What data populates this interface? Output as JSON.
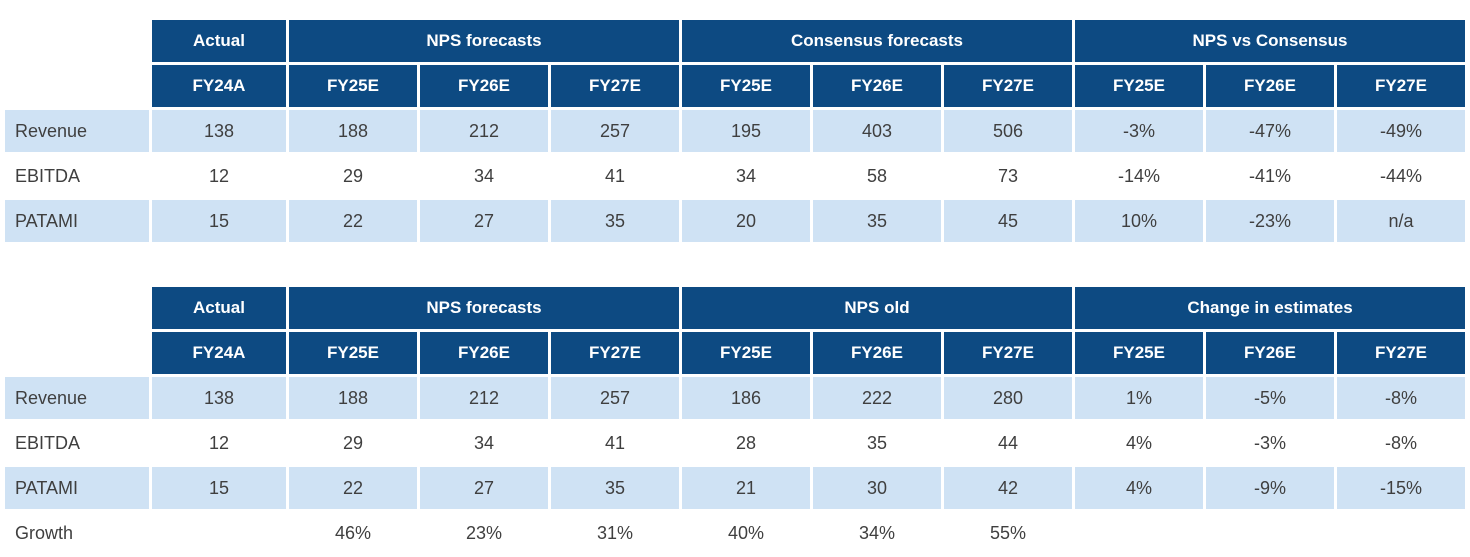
{
  "colors": {
    "header_bg": "#0d4a82",
    "header_text": "#ffffff",
    "row_shaded_bg": "#cfe2f4",
    "row_plain_bg": "#ffffff",
    "body_text": "#3f3f3f",
    "grid_gap": "#ffffff"
  },
  "chart_data": [
    {
      "type": "table",
      "groups": [
        {
          "label": "Actual",
          "span": 1
        },
        {
          "label": "NPS forecasts",
          "span": 3
        },
        {
          "label": "Consensus forecasts",
          "span": 3
        },
        {
          "label": "NPS vs Consensus",
          "span": 3
        }
      ],
      "col_headers": [
        "FY24A",
        "FY25E",
        "FY26E",
        "FY27E",
        "FY25E",
        "FY26E",
        "FY27E",
        "FY25E",
        "FY26E",
        "FY27E"
      ],
      "rows": [
        {
          "label": "Revenue",
          "shaded": true,
          "values": [
            "138",
            "188",
            "212",
            "257",
            "195",
            "403",
            "506",
            "-3%",
            "-47%",
            "-49%"
          ]
        },
        {
          "label": "EBITDA",
          "shaded": false,
          "values": [
            "12",
            "29",
            "34",
            "41",
            "34",
            "58",
            "73",
            "-14%",
            "-41%",
            "-44%"
          ]
        },
        {
          "label": "PATAMI",
          "shaded": true,
          "values": [
            "15",
            "22",
            "27",
            "35",
            "20",
            "35",
            "45",
            "10%",
            "-23%",
            "n/a"
          ]
        }
      ]
    },
    {
      "type": "table",
      "groups": [
        {
          "label": "Actual",
          "span": 1
        },
        {
          "label": "NPS forecasts",
          "span": 3
        },
        {
          "label": "NPS old",
          "span": 3
        },
        {
          "label": "Change in estimates",
          "span": 3
        }
      ],
      "col_headers": [
        "FY24A",
        "FY25E",
        "FY26E",
        "FY27E",
        "FY25E",
        "FY26E",
        "FY27E",
        "FY25E",
        "FY26E",
        "FY27E"
      ],
      "rows": [
        {
          "label": "Revenue",
          "shaded": true,
          "values": [
            "138",
            "188",
            "212",
            "257",
            "186",
            "222",
            "280",
            "1%",
            "-5%",
            "-8%"
          ]
        },
        {
          "label": "EBITDA",
          "shaded": false,
          "values": [
            "12",
            "29",
            "34",
            "41",
            "28",
            "35",
            "44",
            "4%",
            "-3%",
            "-8%"
          ]
        },
        {
          "label": "PATAMI",
          "shaded": true,
          "values": [
            "15",
            "22",
            "27",
            "35",
            "21",
            "30",
            "42",
            "4%",
            "-9%",
            "-15%"
          ]
        },
        {
          "label": "Growth",
          "shaded": false,
          "plain": true,
          "values": [
            "",
            "46%",
            "23%",
            "31%",
            "40%",
            "34%",
            "55%",
            "",
            "",
            ""
          ]
        }
      ]
    }
  ]
}
